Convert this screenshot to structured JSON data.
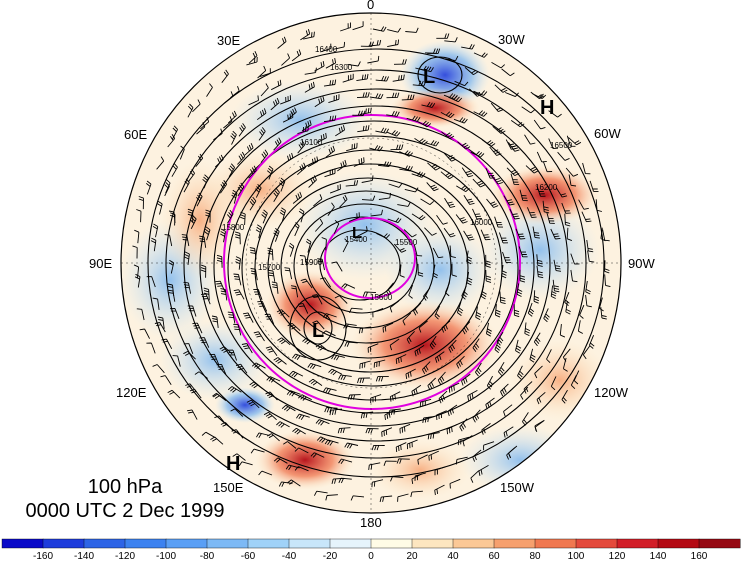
{
  "map": {
    "projection": "north polar stereographic",
    "level": "100 hPa",
    "valid_time": "0000 UTC 2 Dec 1999",
    "longitude_labels": {
      "top": "0",
      "top_left": "30E",
      "top_right": "30W",
      "upper_left": "60E",
      "upper_right": "60W",
      "left": "90E",
      "right": "90W",
      "lower_left": "120E",
      "lower_right": "120W",
      "bottom_left": "150E",
      "bottom_right": "150W",
      "bottom": "180"
    },
    "pressure_centers": [
      {
        "label": "L",
        "region": "north atlantic"
      },
      {
        "label": "H",
        "region": "north atlantic east"
      },
      {
        "label": "L",
        "region": "pole"
      },
      {
        "label": "L",
        "region": "siberia"
      },
      {
        "label": "H",
        "region": "north pacific"
      }
    ],
    "contour_labels": [
      "16400",
      "16300",
      "16500",
      "16200",
      "16100",
      "16000",
      "15900",
      "15800",
      "15700",
      "15600",
      "15500",
      "15400"
    ],
    "contour_field": "geopotential height (m)",
    "shaded_field_colors": {
      "strong_negative": "#1414c8",
      "negative": "#78b4f0",
      "near_zero": "#ffffff",
      "positive": "#f5b48c",
      "strong_positive": "#b40a14"
    },
    "highlight_contour_color": "#e000e0"
  },
  "colorbar": {
    "tick_labels": [
      "-160",
      "-140",
      "-120",
      "-100",
      "-80",
      "-60",
      "-40",
      "-20",
      "0",
      "20",
      "40",
      "60",
      "80",
      "100",
      "120",
      "140",
      "160"
    ],
    "colors": [
      "#0a0ac8",
      "#1e3cdc",
      "#2d64e6",
      "#3c82f0",
      "#5a9ff5",
      "#7db9f5",
      "#a0d2f8",
      "#c8e6fa",
      "#e6f4fc",
      "#fffce6",
      "#fde6c0",
      "#fbc896",
      "#f6a06e",
      "#f07850",
      "#e44a3c",
      "#d21e28",
      "#b40a14",
      "#960a14"
    ]
  }
}
